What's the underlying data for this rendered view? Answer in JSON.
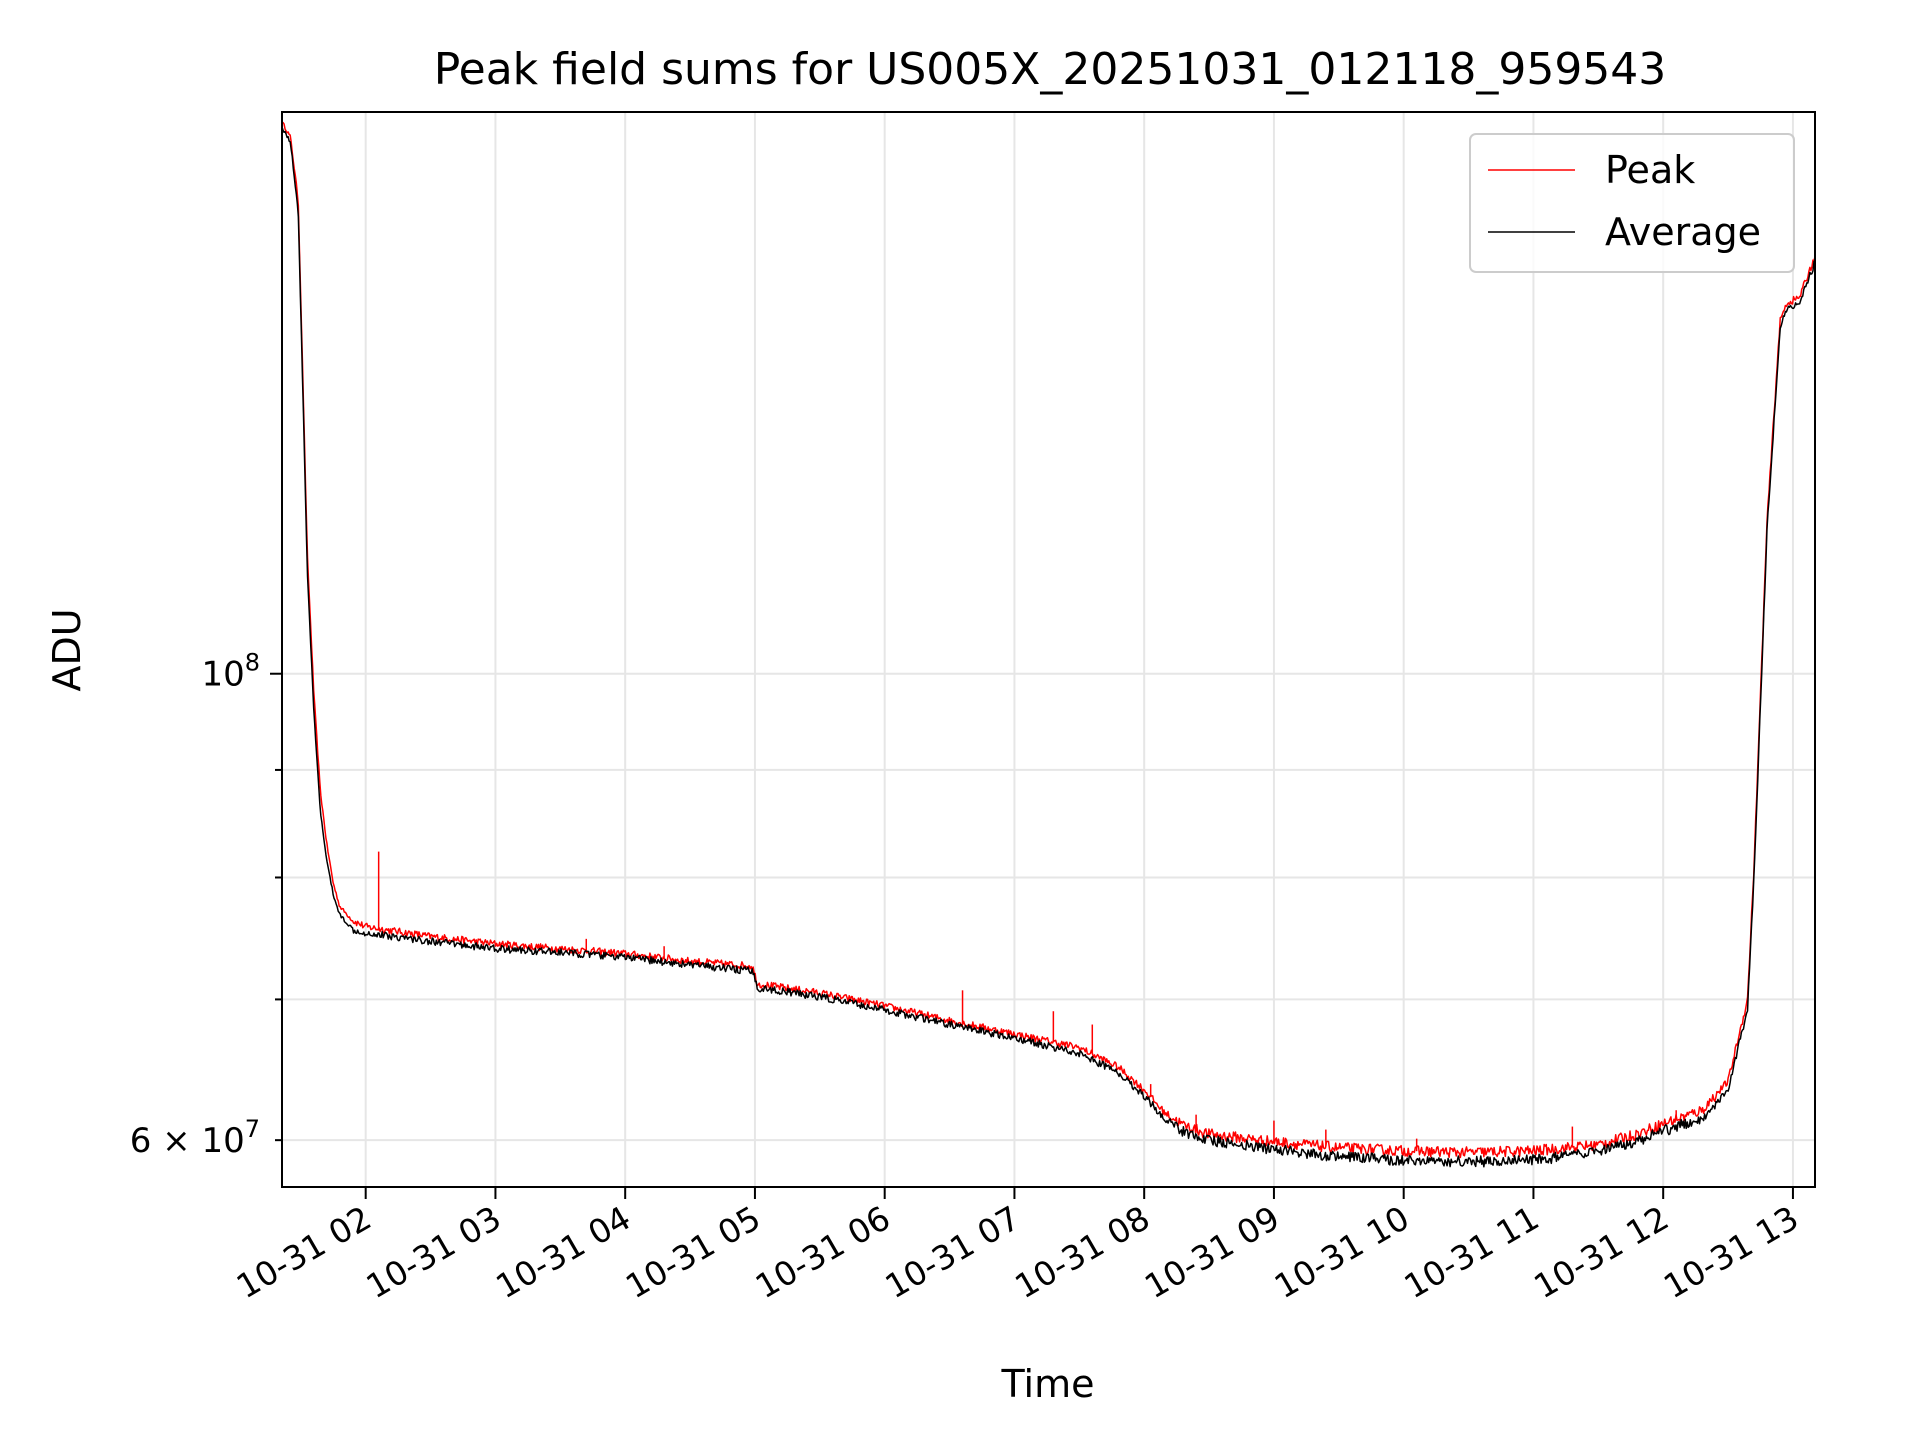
{
  "chart_data": {
    "type": "line",
    "title": "Peak field sums for US005X_20251031_012118_959543",
    "xlabel": "Time",
    "ylabel": "ADU",
    "y_scale": "log",
    "ylim": [
      57000000,
      185000000
    ],
    "x_unit": "hours since 2025-10-31 00:00",
    "xlim": [
      1.355,
      13.17
    ],
    "grid": true,
    "legend_position": "upper right",
    "x_ticks": [
      {
        "value": 2,
        "label": "10-31 02"
      },
      {
        "value": 3,
        "label": "10-31 03"
      },
      {
        "value": 4,
        "label": "10-31 04"
      },
      {
        "value": 5,
        "label": "10-31 05"
      },
      {
        "value": 6,
        "label": "10-31 06"
      },
      {
        "value": 7,
        "label": "10-31 07"
      },
      {
        "value": 8,
        "label": "10-31 08"
      },
      {
        "value": 9,
        "label": "10-31 09"
      },
      {
        "value": 10,
        "label": "10-31 10"
      },
      {
        "value": 11,
        "label": "10-31 11"
      },
      {
        "value": 12,
        "label": "10-31 12"
      },
      {
        "value": 13,
        "label": "10-31 13"
      }
    ],
    "y_ticks_major": [
      {
        "value": 100000000,
        "base": "10",
        "exp": "8"
      }
    ],
    "y_ticks_minor": [
      {
        "value": 60000000,
        "mant": "6",
        "base": "10",
        "exp": "7"
      },
      {
        "value": 70000000
      },
      {
        "value": 80000000
      },
      {
        "value": 90000000
      }
    ],
    "series": [
      {
        "name": "Peak",
        "color": "#ff0000",
        "x": [
          1.355,
          1.42,
          1.48,
          1.52,
          1.55,
          1.6,
          1.65,
          1.7,
          1.75,
          1.8,
          1.9,
          2.0,
          2.5,
          3.0,
          3.5,
          4.0,
          4.5,
          4.98,
          5.02,
          5.5,
          6.0,
          6.5,
          7.0,
          7.5,
          7.8,
          8.0,
          8.15,
          8.3,
          8.5,
          9.0,
          9.5,
          10.0,
          10.5,
          11.0,
          11.5,
          11.8,
          12.0,
          12.3,
          12.5,
          12.65,
          12.7,
          12.8,
          12.9,
          12.95,
          13.05,
          13.17
        ],
        "y": [
          183000000,
          180000000,
          168000000,
          135000000,
          114000000,
          98000000,
          88000000,
          83000000,
          79500000,
          77500000,
          76300000,
          75800000,
          75000000,
          74400000,
          74000000,
          73600000,
          73000000,
          72600000,
          71200000,
          70500000,
          69500000,
          68400000,
          67400000,
          66400000,
          65000000,
          63400000,
          61900000,
          61000000,
          60400000,
          59900000,
          59500000,
          59300000,
          59200000,
          59300000,
          59700000,
          60400000,
          61100000,
          62000000,
          64000000,
          70000000,
          81000000,
          118000000,
          147000000,
          150000000,
          151000000,
          158000000
        ],
        "spikes": [
          [
            2.1,
            82300000
          ],
          [
            3.7,
            74800000
          ],
          [
            4.3,
            74200000
          ],
          [
            6.6,
            70700000
          ],
          [
            7.3,
            69100000
          ],
          [
            7.6,
            68100000
          ],
          [
            8.05,
            63800000
          ],
          [
            8.4,
            61700000
          ],
          [
            9.0,
            61300000
          ],
          [
            9.4,
            60700000
          ],
          [
            10.1,
            60100000
          ],
          [
            11.3,
            60900000
          ],
          [
            12.1,
            62000000
          ]
        ]
      },
      {
        "name": "Average",
        "color": "#000000",
        "x": [
          1.355,
          1.42,
          1.48,
          1.52,
          1.55,
          1.6,
          1.65,
          1.7,
          1.75,
          1.8,
          1.9,
          2.0,
          2.5,
          3.0,
          3.5,
          4.0,
          4.5,
          4.98,
          5.02,
          5.5,
          6.0,
          6.5,
          7.0,
          7.5,
          7.8,
          8.0,
          8.15,
          8.3,
          8.5,
          9.0,
          9.5,
          10.0,
          10.5,
          11.0,
          11.5,
          11.8,
          12.0,
          12.3,
          12.5,
          12.65,
          12.7,
          12.8,
          12.9,
          12.95,
          13.05,
          13.17
        ],
        "y": [
          182000000,
          179000000,
          166000000,
          133000000,
          112000000,
          96000000,
          86000000,
          81500000,
          78500000,
          76800000,
          75600000,
          75300000,
          74600000,
          74000000,
          73700000,
          73300000,
          72700000,
          72200000,
          70900000,
          70200000,
          69200000,
          68100000,
          67100000,
          66000000,
          64600000,
          63000000,
          61500000,
          60600000,
          60000000,
          59400000,
          58900000,
          58700000,
          58600000,
          58700000,
          59200000,
          59900000,
          60600000,
          61500000,
          63400000,
          69300000,
          80000000,
          117000000,
          146000000,
          149000000,
          150000000,
          157000000
        ],
        "spikes": []
      }
    ]
  }
}
